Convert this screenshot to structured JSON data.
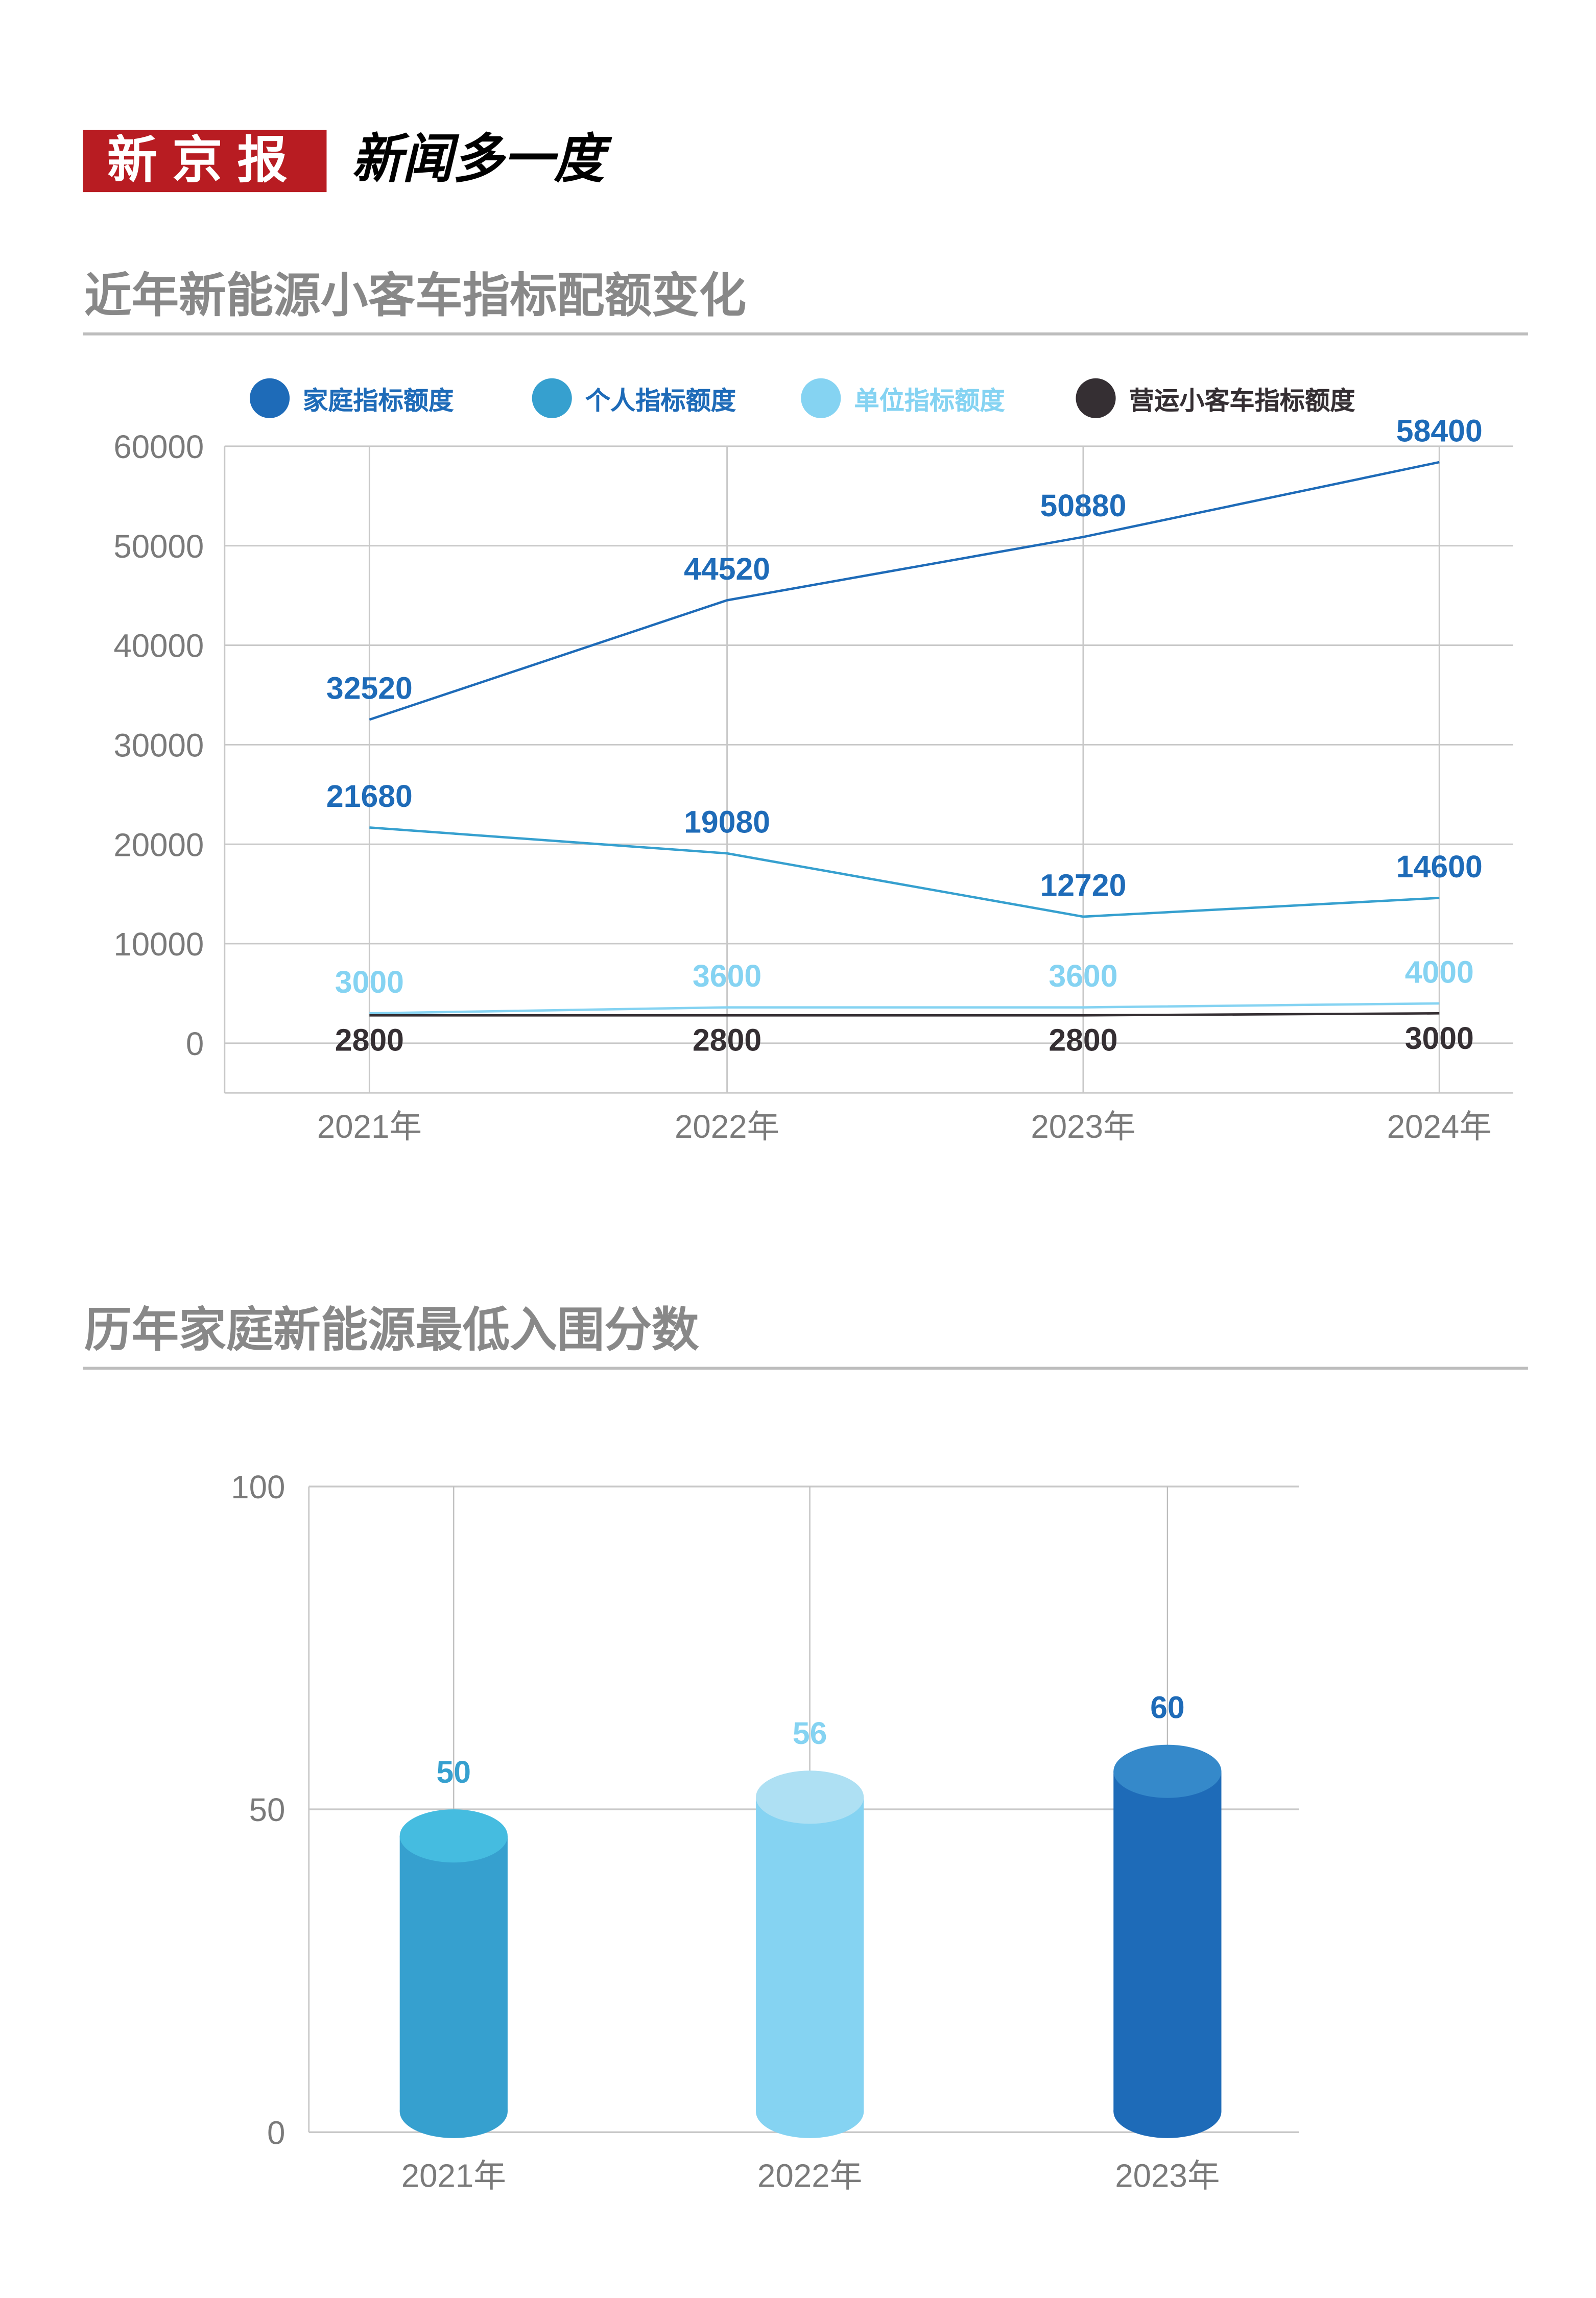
{
  "header": {
    "logo_text": "新京报",
    "slogan": "新闻多一度"
  },
  "colors": {
    "household": "#1e6bb8",
    "personal": "#36a0cf",
    "unit": "#85d3f2",
    "commercial": "#352f33",
    "title_gray": "#888888",
    "logo_red": "#b81c22"
  },
  "chart_data": [
    {
      "type": "line",
      "title": "近年新能源小客车指标配额变化",
      "categories": [
        "2021年",
        "2022年",
        "2023年",
        "2024年"
      ],
      "ylim": [
        -5000,
        60000
      ],
      "yticks": [
        "0",
        "10000",
        "20000",
        "30000",
        "40000",
        "50000",
        "60000"
      ],
      "grid": true,
      "legend_position": "top",
      "series": [
        {
          "name": "家庭指标额度",
          "color": "#1e6bb8",
          "label_color": "#1e6bb8",
          "values": [
            32520,
            44520,
            50880,
            58400
          ]
        },
        {
          "name": "个人指标额度",
          "color": "#36a0cf",
          "label_color": "#1e6bb8",
          "values": [
            21680,
            19080,
            12720,
            14600
          ]
        },
        {
          "name": "单位指标额度",
          "color": "#85d3f2",
          "label_color": "#85d3f2",
          "values": [
            3000,
            3600,
            3600,
            4000
          ]
        },
        {
          "name": "营运小客车指标额度",
          "color": "#352f33",
          "label_color": "#352f33",
          "values": [
            2800,
            2800,
            2800,
            3000
          ]
        }
      ]
    },
    {
      "type": "bar",
      "style": "cylinder",
      "title": "历年家庭新能源最低入围分数",
      "categories": [
        "2021年",
        "2022年",
        "2023年"
      ],
      "values": [
        50,
        56,
        60
      ],
      "colors": [
        "#36a0cf",
        "#85d3f2",
        "#1e6bb8"
      ],
      "top_colors": [
        "#45bce0",
        "#aee0f3",
        "#3589ca"
      ],
      "ylim": [
        0,
        100
      ],
      "yticks": [
        "0",
        "50",
        "100"
      ],
      "grid": true
    }
  ]
}
